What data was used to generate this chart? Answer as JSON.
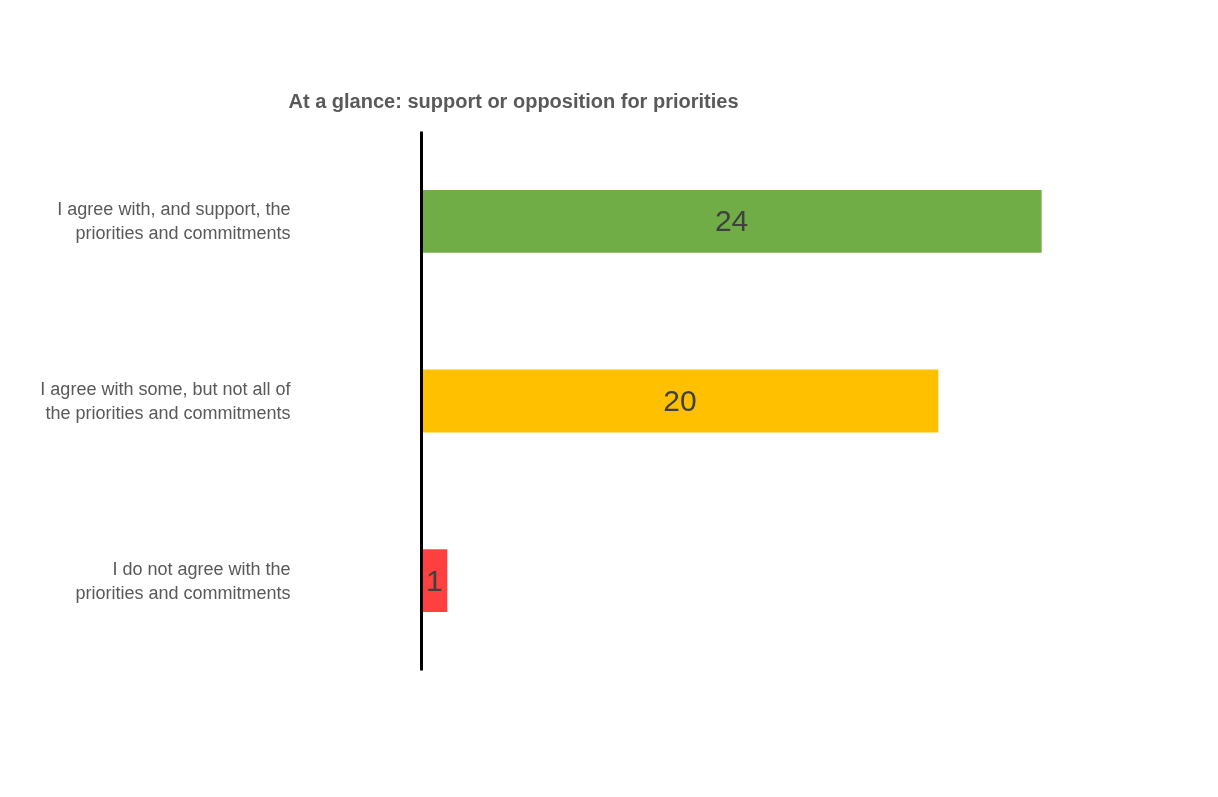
{
  "chart_data": {
    "type": "bar",
    "orientation": "horizontal",
    "title": "At a glance: support or opposition for priorities",
    "categories": [
      "I agree with, and support, the priorities and commitments",
      "I agree with some, but not all of the priorities and commitments",
      "I do not agree with the priorities and commitments"
    ],
    "values": [
      24,
      20,
      1
    ],
    "colors": [
      "#70ad47",
      "#ffc000",
      "#ff4040"
    ],
    "data_labels": true,
    "grid": false
  }
}
